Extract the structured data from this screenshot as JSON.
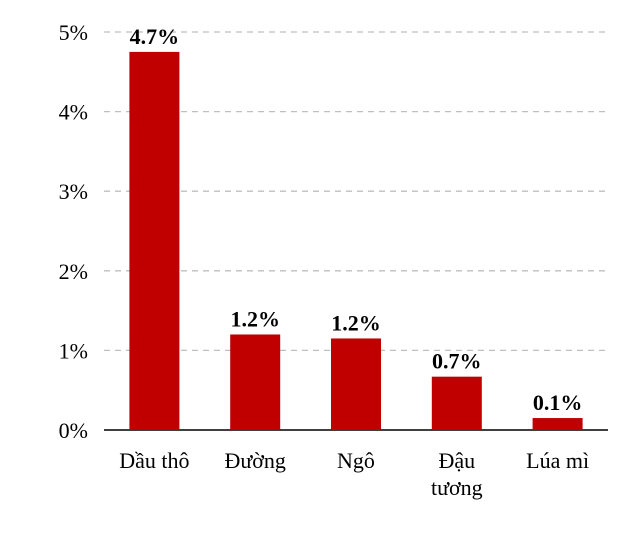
{
  "chart_data": {
    "type": "bar",
    "title": "",
    "xlabel": "",
    "ylabel": "",
    "ylim": [
      0,
      5
    ],
    "yticks": [
      0,
      1,
      2,
      3,
      4,
      5
    ],
    "ytick_format": "{v}%",
    "grid": true,
    "legend": "none",
    "categories": [
      [
        "Dầu thô"
      ],
      [
        "Đường"
      ],
      [
        "Ngô"
      ],
      [
        "Đậu",
        "tương"
      ],
      [
        "Lúa mì"
      ]
    ],
    "values": [
      4.75,
      1.2,
      1.15,
      0.67,
      0.15
    ],
    "data_labels": [
      "4.7%",
      "1.2%",
      "1.2%",
      "0.7%",
      "0.1%"
    ],
    "bar_color": "#c00000",
    "grid_color": "#bfbfbf",
    "axis_color": "#000000"
  }
}
